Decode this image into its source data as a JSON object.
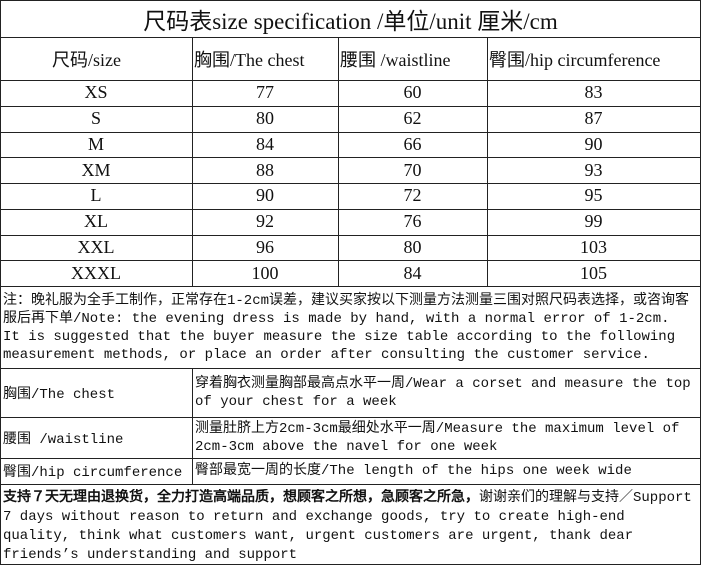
{
  "title": "尺码表size specification /单位/unit 厘米/cm",
  "size_table": {
    "headers": [
      "尺码/size",
      "胸围/The chest",
      "腰围 /waistline",
      "臀围/hip circumference"
    ],
    "rows": [
      [
        "XS",
        77,
        60,
        83
      ],
      [
        "S",
        80,
        62,
        87
      ],
      [
        "M",
        84,
        66,
        90
      ],
      [
        "XM",
        88,
        70,
        93
      ],
      [
        "L",
        90,
        72,
        95
      ],
      [
        "XL",
        92,
        76,
        99
      ],
      [
        "XXL",
        96,
        80,
        103
      ],
      [
        "XXXL",
        100,
        84,
        105
      ]
    ]
  },
  "note": "注：晚礼服为全手工制作，正常存在1-2cm误差，建议买家按以下测量方法测量三围对照尺码表选择，或咨询客服后再下单/Note: the evening dress is made by hand, with a normal error of 1-2cm. It is suggested that the buyer measure the size table according to the following measurement methods, or place an order after consulting the customer service.",
  "measure_table": {
    "rows": [
      [
        "胸围/The chest",
        "穿着胸衣测量胸部最高点水平一周/Wear a corset and measure the top of your chest for a week"
      ],
      [
        "腰围 /waistline",
        "测量肚脐上方2cm-3cm最细处水平一周/Measure the maximum level of 2cm-3cm above the navel for one week"
      ],
      [
        "臀围/hip circumference",
        "臀部最宽一周的长度/The length of the hips one week wide"
      ]
    ]
  },
  "footer": {
    "emphasis": "支持７天无理由退换货，全力打造高端品质，想顾客之所想，急顾客之所急，",
    "text": "谢谢亲们的理解与支持／Support 7 days without reason to return and exchange goods, try to create high-end quality, think what customers want, urgent customers are urgent, thank dear friends’s understanding and support"
  }
}
